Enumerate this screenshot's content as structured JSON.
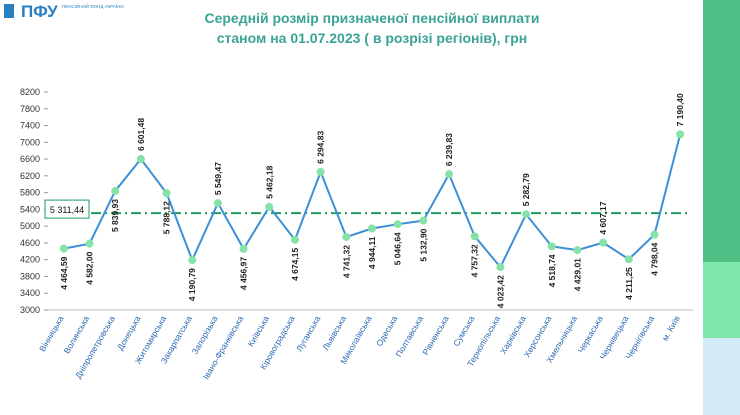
{
  "header": {
    "logo": "ПФУ",
    "logo_caption": "ПЕНСІЙНИЙ ФОНД УКРАЇНИ"
  },
  "chart_data": {
    "type": "line",
    "title": [
      "Середній розмір призначеної пенсійної виплати",
      "станом на 01.07.2023 ( в розрізі регіонів), грн"
    ],
    "categories": [
      "Вінницька",
      "Волинська",
      "Дніпропетровська",
      "Донецька",
      "Житомирська",
      "Закарпатська",
      "Запорізька",
      "Івано-Франківська",
      "Київська",
      "Кіровоградська",
      "Луганська",
      "Львівська",
      "Миколаївська",
      "Одеська",
      "Полтавська",
      "Рівненська",
      "Сумська",
      "Тернопільська",
      "Харківська",
      "Херсонська",
      "Хмельницька",
      "Черкаська",
      "Чернівецька",
      "Чернігівська",
      "м. Київ"
    ],
    "series": [
      {
        "color": "#3d8fd8",
        "marker_color": "#86e3a8",
        "values": [
          4464.59,
          4582.0,
          5839.93,
          6601.48,
          5788.12,
          4190.79,
          5549.47,
          4456.97,
          5462.18,
          4674.15,
          6294.83,
          4741.32,
          4944.11,
          5046.64,
          5132.9,
          6239.83,
          4757.32,
          4023.42,
          5282.79,
          4518.74,
          4429.01,
          4607.17,
          4211.25,
          4798.04,
          7190.4
        ],
        "value_labels": [
          "4 464,59",
          "4 582,00",
          "5 839,93",
          "6 601,48",
          "5 788,12",
          "4 190,79",
          "5 549,47",
          "4 456,97",
          "5 462,18",
          "4 674,15",
          "6 294,83",
          "4 741,32",
          "4 944,11",
          "5 046,64",
          "5 132,90",
          "6 239,83",
          "4 757,32",
          "4 023,42",
          "5 282,79",
          "4 518,74",
          "4 429,01",
          "4 607,17",
          "4 211,25",
          "4 798,04",
          "7 190,40"
        ]
      }
    ],
    "average": {
      "value": 5311.44,
      "label": "5 311,44",
      "color": "#1e9e5e"
    },
    "ylim": [
      3000,
      8200
    ],
    "yticks": [
      3000,
      3400,
      3800,
      4200,
      4600,
      5000,
      5400,
      5800,
      6200,
      6600,
      7000,
      7400,
      7800,
      8200
    ],
    "grid": false
  }
}
